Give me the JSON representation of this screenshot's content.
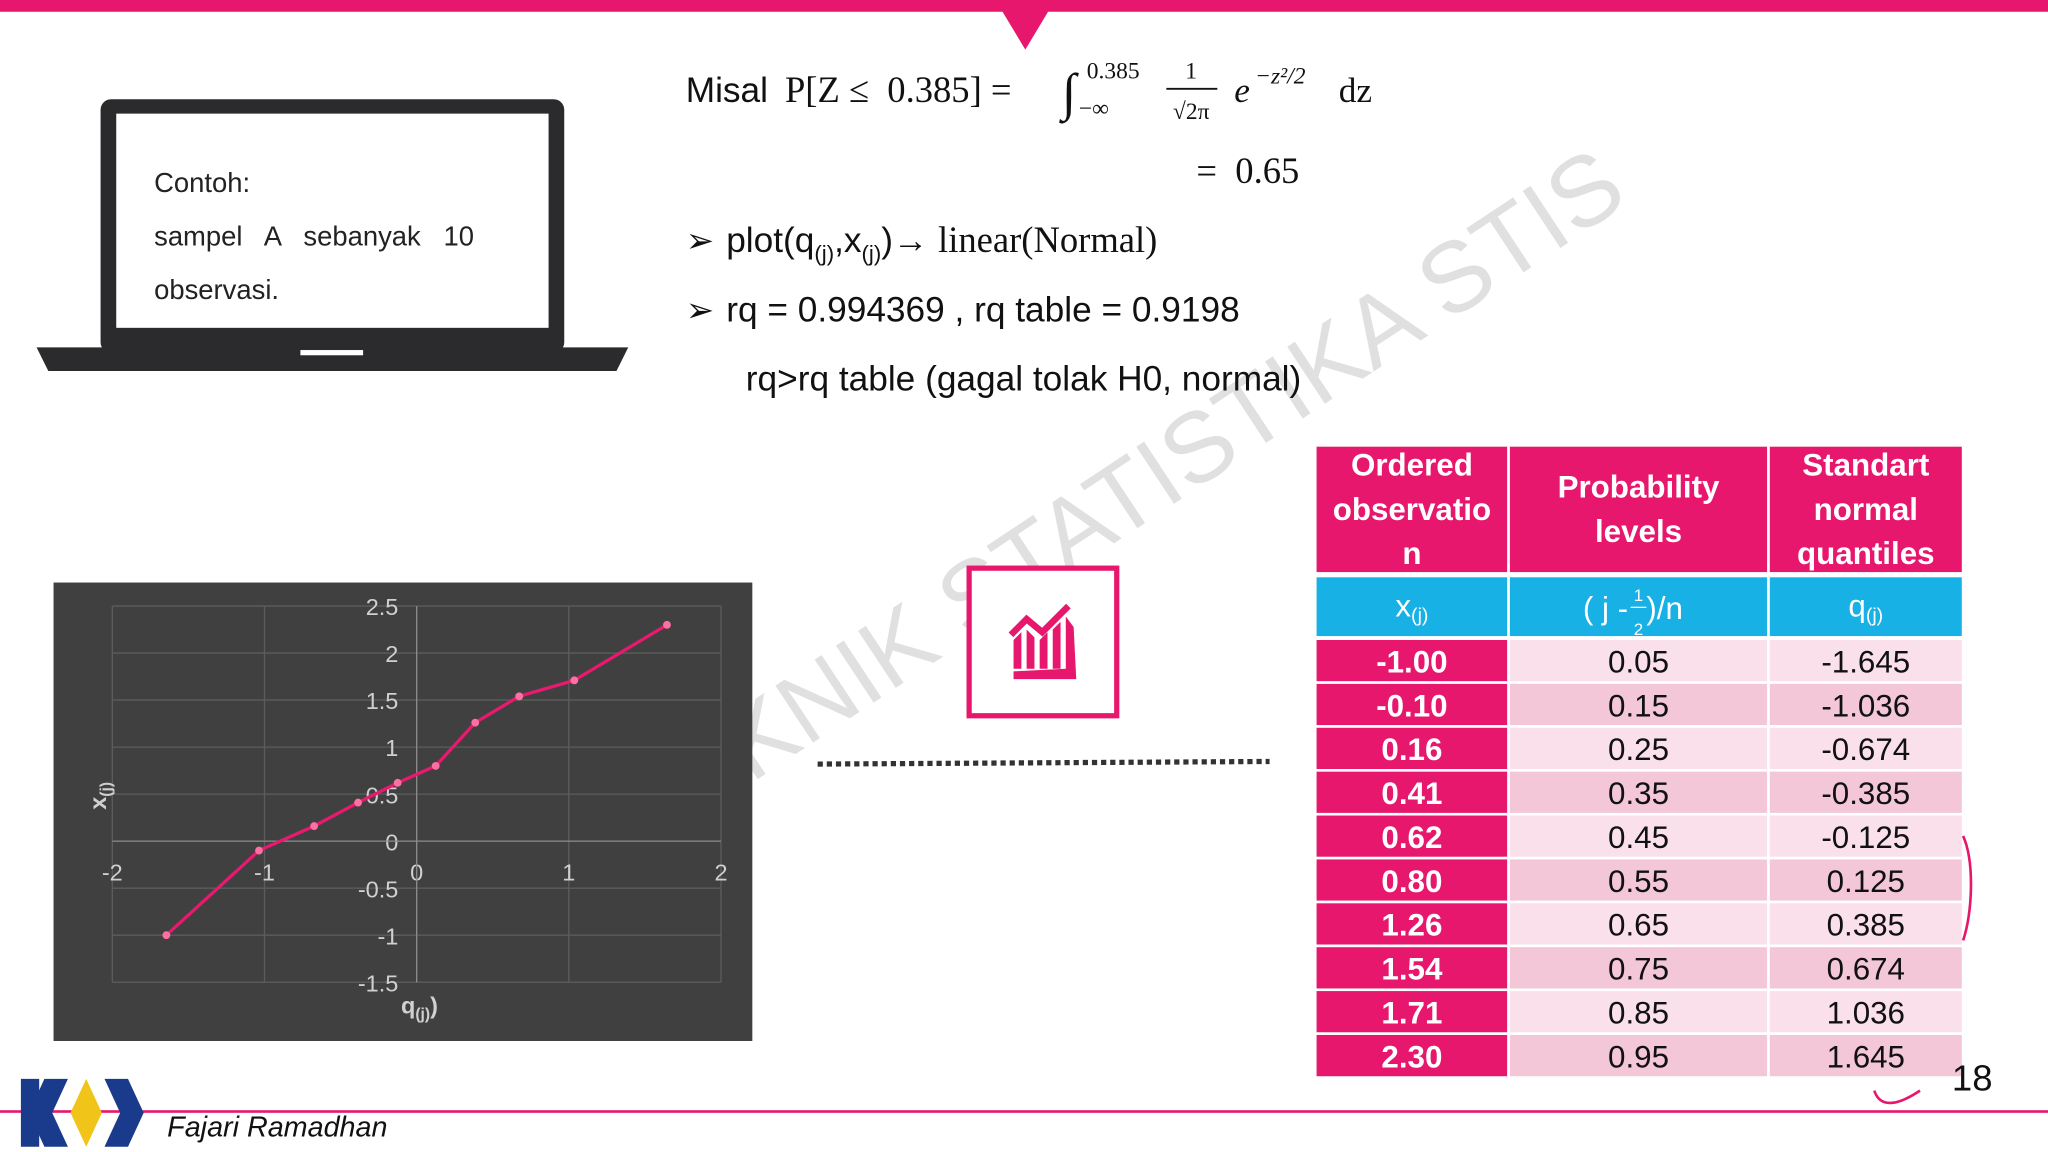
{
  "formula": {
    "prefix": "Misal",
    "lhs": "P[Z ≤  0.385] =",
    "integral": "∫",
    "upper": "0.385",
    "lower": "−∞",
    "frac_num": "1",
    "frac_den": "√2π",
    "base": "e",
    "exponent": "−z²/2",
    "dz": "dz",
    "result": "=  0.65"
  },
  "bullets": {
    "marker": "➢",
    "first": [
      "plot(q",
      "(j)",
      ",x",
      "(j)",
      ")→ ",
      "linear(Normal)"
    ],
    "second": "rq = 0.994369 , rq table = 0.9198",
    "third": "rq>rq table (gagal tolak H0, normal)"
  },
  "laptop": {
    "lines": [
      "Contoh:",
      "sampel   A   sebanyak   10",
      "observasi."
    ]
  },
  "watermark": "KNIK STATISTIKA STIS",
  "table": {
    "headers": [
      [
        "Ordered",
        "observatio",
        "n"
      ],
      [
        "Probability",
        "levels"
      ],
      [
        "Standart",
        "normal",
        "quantiles"
      ]
    ],
    "subheaders": [
      {
        "text": "x",
        "sub": "(j)"
      },
      {
        "text": "( j - ",
        "num": "1",
        "den": "2",
        "tail": " )/n"
      },
      {
        "text": "q",
        "sub": "(j)"
      }
    ],
    "rows": [
      [
        "-1.00",
        "0.05",
        "-1.645"
      ],
      [
        "-0.10",
        "0.15",
        "-1.036"
      ],
      [
        "0.16",
        "0.25",
        "-0.674"
      ],
      [
        "0.41",
        "0.35",
        "-0.385"
      ],
      [
        "0.62",
        "0.45",
        "-0.125"
      ],
      [
        "0.80",
        "0.55",
        "0.125"
      ],
      [
        "1.26",
        "0.65",
        "0.385"
      ],
      [
        "1.54",
        "0.75",
        "0.674"
      ],
      [
        "1.71",
        "0.85",
        "1.036"
      ],
      [
        "2.30",
        "0.95",
        "1.645"
      ]
    ]
  },
  "chart_data": {
    "type": "line",
    "x_label": {
      "text": "q",
      "sub": "(j)",
      "tail": ")"
    },
    "y_label": {
      "text": "x",
      "sub": "(j)"
    },
    "x": [
      -1.645,
      -1.036,
      -0.674,
      -0.385,
      -0.125,
      0.125,
      0.385,
      0.674,
      1.036,
      1.645
    ],
    "values": [
      -1.0,
      -0.1,
      0.16,
      0.41,
      0.62,
      0.8,
      1.26,
      1.54,
      1.71,
      2.3
    ],
    "color": "#e8196e",
    "xlim": [
      -2,
      2
    ],
    "ylim": [
      -1.5,
      2.5
    ],
    "xticks": [
      -2,
      -1,
      0,
      1,
      2
    ],
    "yticks": [
      -1.5,
      -1,
      -0.5,
      0,
      0.5,
      1,
      1.5,
      2,
      2.5
    ],
    "grid": true
  },
  "footer": {
    "author": "Fajari Ramadhan",
    "page": "18"
  }
}
